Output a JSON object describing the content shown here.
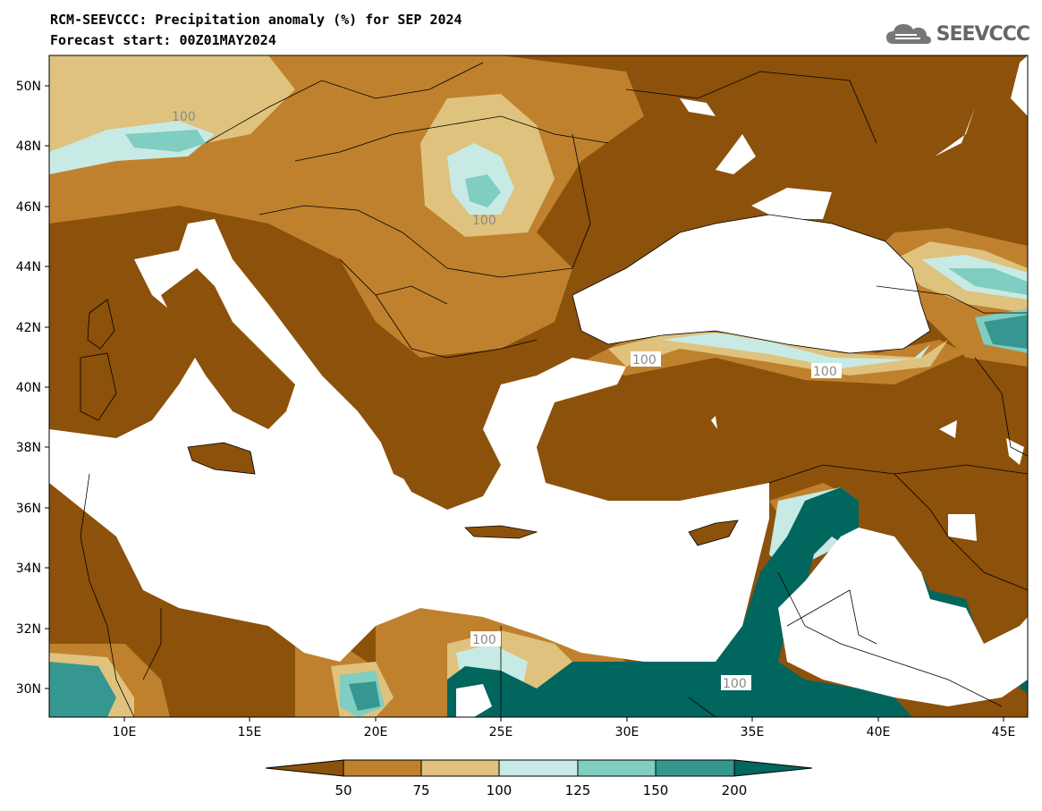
{
  "header": {
    "title": "RCM-SEEVCCC: Precipitation anomaly (%) for SEP 2024",
    "subtitle": "Forecast start: 00Z01MAY2024"
  },
  "logo": {
    "text": "SEEVCCC",
    "icon": "cloud-icon"
  },
  "map": {
    "lat_ticks": [
      "50N",
      "48N",
      "46N",
      "44N",
      "42N",
      "40N",
      "38N",
      "36N",
      "34N",
      "32N",
      "30N"
    ],
    "lon_ticks": [
      "10E",
      "15E",
      "20E",
      "25E",
      "30E",
      "35E",
      "40E",
      "45E"
    ],
    "contour_labels": [
      "100",
      "100",
      "100",
      "100",
      "100",
      "100"
    ]
  },
  "colorbar": {
    "labels": [
      "50",
      "75",
      "100",
      "125",
      "150",
      "200"
    ],
    "colors": {
      "below_50": "#8c510a",
      "50_75": "#bf812d",
      "75_100": "#dfc27d",
      "100_125": "#c7eae5",
      "125_150": "#80cdc1",
      "150_200": "#35978f",
      "above_200": "#01665e"
    }
  }
}
